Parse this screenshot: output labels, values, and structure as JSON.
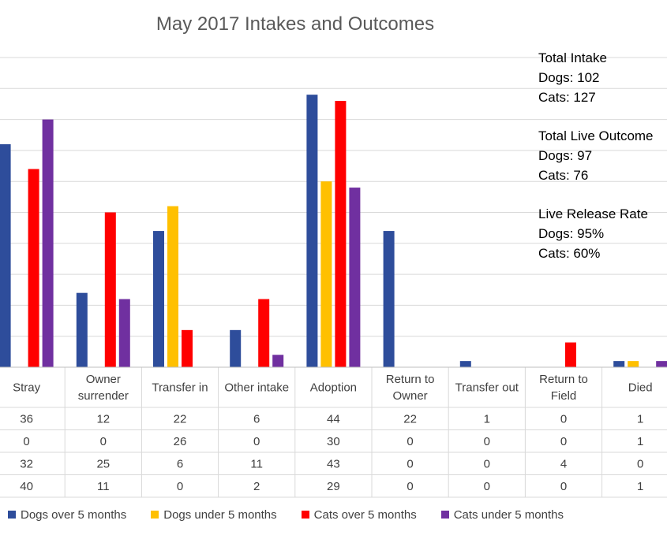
{
  "chart_data": {
    "type": "bar",
    "title": "May 2017 Intakes and Outcomes",
    "categories": [
      "Stray",
      "Owner\nsurrender",
      "Transfer in",
      "Other intake",
      "Adoption",
      "Return to\nOwner",
      "Transfer out",
      "Return to\nField",
      "Died"
    ],
    "series": [
      {
        "name": "Dogs over 5 months",
        "color": "#2E4D9B",
        "values": [
          36,
          12,
          22,
          6,
          44,
          22,
          1,
          0,
          1
        ]
      },
      {
        "name": "Dogs under 5 months",
        "color": "#FFC000",
        "values": [
          0,
          0,
          26,
          0,
          30,
          0,
          0,
          0,
          1
        ]
      },
      {
        "name": "Cats over 5 months",
        "color": "#FF0000",
        "values": [
          32,
          25,
          6,
          11,
          43,
          0,
          0,
          4,
          0
        ]
      },
      {
        "name": "Cats under 5 months",
        "color": "#7030A0",
        "values": [
          40,
          11,
          0,
          2,
          29,
          0,
          0,
          0,
          1
        ]
      }
    ],
    "ylim": [
      0,
      50
    ],
    "grid": true,
    "data_table": true,
    "legend_position": "bottom"
  },
  "annotations": {
    "total_intake": {
      "heading": "Total Intake",
      "dogs": "Dogs: 102",
      "cats": "Cats: 127"
    },
    "total_live_outcome": {
      "heading": "Total Live Outcome",
      "dogs": "Dogs: 97",
      "cats": "Cats: 76"
    },
    "live_release_rate": {
      "heading": "Live Release Rate",
      "dogs": "Dogs: 95%",
      "cats": "Cats: 60%"
    }
  }
}
